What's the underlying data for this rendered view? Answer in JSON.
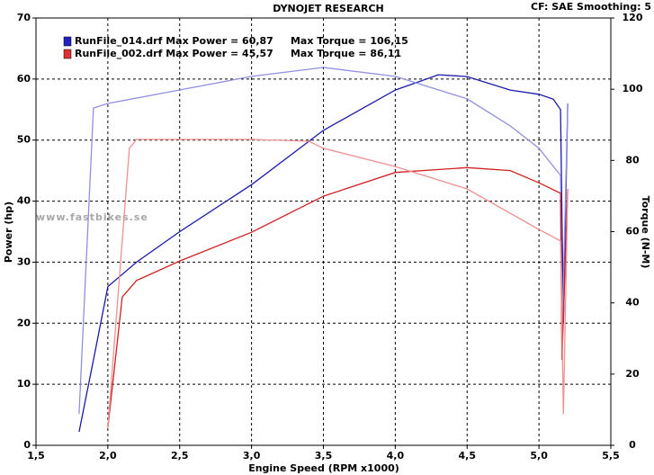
{
  "chart_data": {
    "type": "line",
    "title": "DYNOJET RESEARCH",
    "subtitle": "CF: SAE  Smoothing: 5",
    "xlabel": "Engine Speed (RPM x1000)",
    "ylabel": "Power (hp)",
    "y2label": "Torque (N-M)",
    "annotation": "www.fastbikes.se",
    "legend": [
      {
        "label": "RunFile_014.drf Max Power = 60,87     Max Torque = 106,15",
        "color": "#2020c0"
      },
      {
        "label": "RunFile_002.drf Max Power = 45,57     Max Torque = 86,11",
        "color": "#e03030"
      }
    ],
    "xlim": [
      1.5,
      5.5
    ],
    "xticks": [
      {
        "value": 1.5,
        "label": "1,5"
      },
      {
        "value": 2.0,
        "label": "2,0"
      },
      {
        "value": 2.5,
        "label": "2,5"
      },
      {
        "value": 3.0,
        "label": "3,0"
      },
      {
        "value": 3.5,
        "label": "3,5"
      },
      {
        "value": 4.0,
        "label": "4,0"
      },
      {
        "value": 4.5,
        "label": "4,5"
      },
      {
        "value": 5.0,
        "label": "5,0"
      },
      {
        "value": 5.5,
        "label": "5,5"
      }
    ],
    "ylim": [
      0,
      70
    ],
    "yticks": [
      0,
      10,
      20,
      30,
      40,
      50,
      60,
      70
    ],
    "y2lim": [
      0,
      120
    ],
    "y2ticks": [
      0,
      20,
      40,
      60,
      80,
      100,
      120
    ],
    "grid": true,
    "series": [
      {
        "color": "#1a1aaa",
        "x": [
          1.8,
          1.9,
          2.0,
          2.2,
          2.5,
          3.0,
          3.5,
          4.0,
          4.3,
          4.5,
          4.8,
          5.0,
          5.1,
          5.15,
          5.17,
          5.2
        ],
        "values": [
          2.2,
          14,
          26,
          30,
          35,
          42.7,
          51.6,
          58.2,
          60.7,
          60.4,
          58.2,
          57.5,
          56.7,
          55,
          20,
          56
        ]
      },
      {
        "color": "#9090e0",
        "axis": "y2",
        "x": [
          1.8,
          1.9,
          2.0,
          2.5,
          3.0,
          3.5,
          4.0,
          4.5,
          4.8,
          5.0,
          5.15,
          5.16,
          5.2
        ],
        "values": [
          8.8,
          94.7,
          96,
          99.8,
          103.6,
          106.1,
          103.6,
          97.3,
          89.7,
          83.4,
          75.8,
          29,
          96
        ]
      },
      {
        "color": "#d02020",
        "x": [
          2.0,
          2.1,
          2.2,
          2.5,
          3.0,
          3.5,
          4.0,
          4.5,
          4.8,
          5.0,
          5.15,
          5.16,
          5.2
        ],
        "values": [
          2.9,
          24.3,
          27,
          30.2,
          34.9,
          40.8,
          44.7,
          45.5,
          45,
          43,
          41.3,
          14,
          42
        ]
      },
      {
        "color": "#f09090",
        "axis": "y2",
        "x": [
          2.0,
          2.15,
          2.2,
          2.5,
          3.0,
          3.4,
          3.5,
          4.0,
          4.5,
          5.0,
          5.15,
          5.17,
          5.2
        ],
        "values": [
          5,
          83.4,
          85.9,
          85.9,
          85.9,
          85.4,
          83.4,
          78.3,
          72,
          60.6,
          57.4,
          8.8,
          72
        ]
      }
    ]
  }
}
